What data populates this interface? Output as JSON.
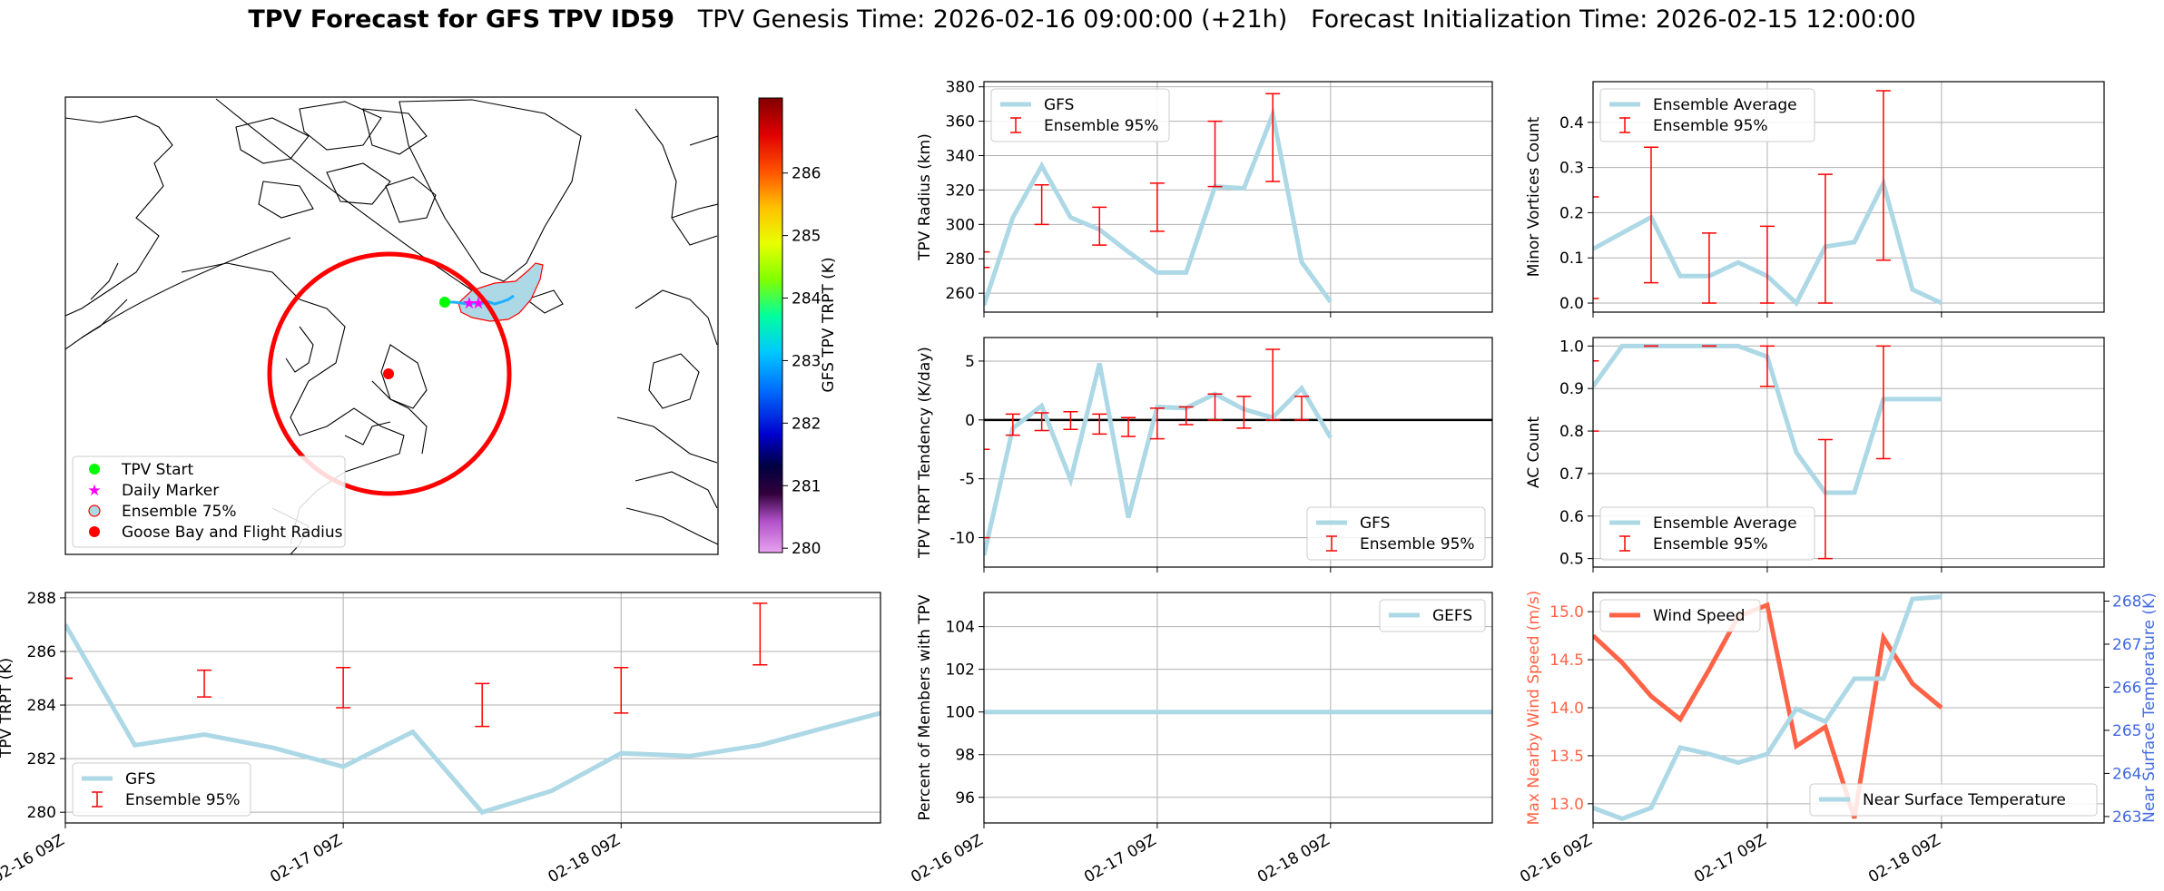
{
  "title": {
    "bold": "TPV Forecast for GFS TPV ID59",
    "genesis": "TPV Genesis Time: 2026-02-16 09:00:00 (+21h)",
    "init": "Forecast Initialization Time: 2026-02-15 12:00:00"
  },
  "colors": {
    "gfs": "#add8e6",
    "err": "#ff0000",
    "wind": "#ff6347",
    "temp_axis": "#4169e1"
  },
  "x_ticks": [
    "02-16 09Z",
    "02-17 09Z",
    "02-18 09Z"
  ],
  "map": {
    "colorbar_label": "GFS TPV TRPT (K)",
    "colorbar_ticks": [
      280,
      281,
      282,
      283,
      284,
      285,
      286
    ],
    "colorbar_range": [
      279.93,
      287.2
    ],
    "legend": [
      "TPV Start",
      "Daily Marker",
      "Ensemble 75%",
      "Goose Bay and Flight Radius"
    ]
  },
  "chart_data": [
    {
      "id": "radius",
      "type": "line",
      "ylabel": "TPV Radius (km)",
      "xlim": [
        0,
        17.6
      ],
      "ylim": [
        249,
        383
      ],
      "yticks": [
        260,
        280,
        300,
        320,
        340,
        360,
        380
      ],
      "legend": [
        "GFS",
        "Ensemble 95%"
      ],
      "legend_pos": "upper-left",
      "series": [
        {
          "name": "GFS",
          "x": [
            0,
            1,
            2,
            3,
            4,
            5,
            6,
            7,
            8,
            9,
            10,
            11,
            12
          ],
          "y": [
            253,
            304,
            334,
            304,
            297,
            284,
            272,
            272,
            322,
            321,
            364,
            278,
            255
          ]
        }
      ],
      "errorbars": [
        {
          "x": -0.05,
          "lo": 275,
          "hi": 284
        },
        {
          "x": 2,
          "lo": 300,
          "hi": 323
        },
        {
          "x": 4,
          "lo": 288,
          "hi": 310
        },
        {
          "x": 6,
          "lo": 296,
          "hi": 324
        },
        {
          "x": 8,
          "lo": 322,
          "hi": 360
        },
        {
          "x": 10,
          "lo": 325,
          "hi": 376
        }
      ]
    },
    {
      "id": "tendency",
      "type": "line",
      "ylabel": "TPV TRPT Tendency (K/day)",
      "xlim": [
        0,
        17.6
      ],
      "ylim": [
        -12.5,
        7
      ],
      "yticks": [
        -10,
        -5,
        0,
        5
      ],
      "legend": [
        "GFS",
        "Ensemble 95%"
      ],
      "legend_pos": "lower-right",
      "zero_line": true,
      "series": [
        {
          "name": "GFS",
          "x": [
            0,
            1,
            2,
            3,
            4,
            5,
            6,
            7,
            8,
            9,
            10,
            11,
            12
          ],
          "y": [
            -11.5,
            -0.7,
            1.2,
            -5.1,
            4.8,
            -8.3,
            1.1,
            1.0,
            2.2,
            0.9,
            0.2,
            2.7,
            -1.5
          ]
        }
      ],
      "errorbars": [
        {
          "x": -0.05,
          "lo": -10,
          "hi": -2.5
        },
        {
          "x": 1,
          "lo": -1.3,
          "hi": 0.5
        },
        {
          "x": 2,
          "lo": -0.9,
          "hi": 0.6
        },
        {
          "x": 3,
          "lo": -0.8,
          "hi": 0.7
        },
        {
          "x": 4,
          "lo": -1.2,
          "hi": 0.5
        },
        {
          "x": 5,
          "lo": -1.4,
          "hi": 0.2
        },
        {
          "x": 6,
          "lo": -1.6,
          "hi": 1.0
        },
        {
          "x": 7,
          "lo": -0.4,
          "hi": 1.1
        },
        {
          "x": 8,
          "lo": 0.0,
          "hi": 2.2
        },
        {
          "x": 9,
          "lo": -0.7,
          "hi": 2.0
        },
        {
          "x": 10,
          "lo": 0.0,
          "hi": 6.0
        },
        {
          "x": 11,
          "lo": 0.0,
          "hi": 2.0
        }
      ]
    },
    {
      "id": "percent",
      "type": "line",
      "ylabel": "Percent of Members with TPV",
      "xlim": [
        0,
        17.6
      ],
      "ylim": [
        94.8,
        105.6
      ],
      "yticks": [
        96,
        98,
        100,
        102,
        104
      ],
      "legend": [
        "GEFS"
      ],
      "legend_pos": "upper-right",
      "series": [
        {
          "name": "GEFS",
          "x": [
            0,
            17.6
          ],
          "y": [
            100,
            100
          ]
        }
      ],
      "errorbars": []
    },
    {
      "id": "trpt",
      "type": "line",
      "ylabel": "TPV TRPT (K)",
      "xlim": [
        0,
        17.6
      ],
      "ylim": [
        279.6,
        288.2
      ],
      "yticks": [
        280,
        282,
        284,
        286,
        288
      ],
      "legend": [
        "GFS",
        "Ensemble 95%"
      ],
      "legend_pos": "lower-left",
      "series": [
        {
          "name": "GFS",
          "x": [
            0,
            1.5,
            3,
            4.5,
            6,
            7.5,
            9,
            10.5,
            12,
            13.5,
            15,
            16.5,
            17.6
          ],
          "y": [
            287.0,
            282.5,
            282.9,
            282.4,
            281.7,
            283.0,
            280.0,
            280.8,
            282.2,
            282.1,
            282.5,
            283.2,
            283.7
          ]
        }
      ],
      "errorbars": [
        {
          "x": 0,
          "lo": 285.0,
          "hi": 285.0
        },
        {
          "x": 3,
          "lo": 284.3,
          "hi": 285.3
        },
        {
          "x": 6,
          "lo": 283.9,
          "hi": 285.4
        },
        {
          "x": 9,
          "lo": 283.2,
          "hi": 284.8
        },
        {
          "x": 12,
          "lo": 283.7,
          "hi": 285.4
        },
        {
          "x": 15,
          "lo": 285.5,
          "hi": 287.8
        }
      ]
    },
    {
      "id": "minor",
      "type": "line",
      "ylabel": "Minor Vortices Count",
      "xlim": [
        0,
        17.6
      ],
      "ylim": [
        -0.02,
        0.49
      ],
      "yticks": [
        0.0,
        0.1,
        0.2,
        0.3,
        0.4
      ],
      "legend": [
        "Ensemble Average",
        "Ensemble 95%"
      ],
      "legend_pos": "upper-left",
      "series": [
        {
          "name": "Ensemble Average",
          "x": [
            0,
            1,
            2,
            3,
            4,
            5,
            6,
            7,
            8,
            9,
            10,
            11,
            12
          ],
          "y": [
            0.12,
            0.155,
            0.19,
            0.06,
            0.06,
            0.09,
            0.06,
            0.0,
            0.125,
            0.135,
            0.265,
            0.03,
            0.0
          ]
        }
      ],
      "errorbars": [
        {
          "x": -0.05,
          "lo": 0.01,
          "hi": 0.235
        },
        {
          "x": 2,
          "lo": 0.045,
          "hi": 0.345
        },
        {
          "x": 4,
          "lo": 0.0,
          "hi": 0.155
        },
        {
          "x": 6,
          "lo": 0.0,
          "hi": 0.17
        },
        {
          "x": 8,
          "lo": 0.0,
          "hi": 0.285
        },
        {
          "x": 10,
          "lo": 0.095,
          "hi": 0.47
        }
      ]
    },
    {
      "id": "ac",
      "type": "line",
      "ylabel": "AC Count",
      "xlim": [
        0,
        17.6
      ],
      "ylim": [
        0.48,
        1.02
      ],
      "yticks": [
        0.5,
        0.6,
        0.7,
        0.8,
        0.9,
        1.0
      ],
      "legend": [
        "Ensemble Average",
        "Ensemble 95%"
      ],
      "legend_pos": "lower-left",
      "series": [
        {
          "name": "Ensemble Average",
          "x": [
            0,
            1,
            2,
            3,
            4,
            5,
            6,
            7,
            8,
            9,
            10,
            11,
            12
          ],
          "y": [
            0.905,
            1.0,
            1.0,
            1.0,
            1.0,
            1.0,
            0.975,
            0.75,
            0.655,
            0.655,
            0.875,
            0.875,
            0.875
          ]
        }
      ],
      "errorbars": [
        {
          "x": -0.05,
          "lo": 0.8,
          "hi": 0.965
        },
        {
          "x": 2,
          "lo": 1.0,
          "hi": 1.0
        },
        {
          "x": 4,
          "lo": 1.0,
          "hi": 1.0
        },
        {
          "x": 6,
          "lo": 0.905,
          "hi": 1.0
        },
        {
          "x": 8,
          "lo": 0.5,
          "hi": 0.78
        },
        {
          "x": 10,
          "lo": 0.735,
          "hi": 1.0
        }
      ]
    },
    {
      "id": "wind",
      "type": "line",
      "ylabel": "Max Nearby Wind Speed (m/s)",
      "y2label": "Near Surface Temperature (K)",
      "xlim": [
        0,
        17.6
      ],
      "ylim": [
        12.8,
        15.2
      ],
      "yticks": [
        13.0,
        13.5,
        14.0,
        14.5,
        15.0
      ],
      "y2lim": [
        262.85,
        268.2
      ],
      "y2ticks": [
        263,
        264,
        265,
        266,
        267,
        268
      ],
      "legend": [
        "Wind Speed"
      ],
      "legend2": [
        "Near Surface Temperature"
      ],
      "legend_pos": "upper-left",
      "legend2_pos": "lower-right",
      "series": [
        {
          "name": "Wind Speed",
          "x": [
            0,
            1,
            2,
            3,
            4,
            5,
            6,
            7,
            8,
            9,
            10,
            11,
            12
          ],
          "y": [
            14.75,
            14.47,
            14.12,
            13.88,
            14.4,
            14.95,
            15.07,
            13.6,
            13.8,
            12.85,
            14.73,
            14.25,
            14.0
          ]
        },
        {
          "name": "Near Surface Temperature",
          "axis": "right",
          "x": [
            0,
            1,
            2,
            3,
            4,
            5,
            6,
            7,
            8,
            9,
            10,
            11,
            12
          ],
          "y": [
            263.2,
            262.95,
            263.2,
            264.6,
            264.45,
            264.25,
            264.45,
            265.5,
            265.2,
            266.2,
            266.2,
            268.05,
            268.1
          ]
        }
      ],
      "errorbars": []
    }
  ]
}
